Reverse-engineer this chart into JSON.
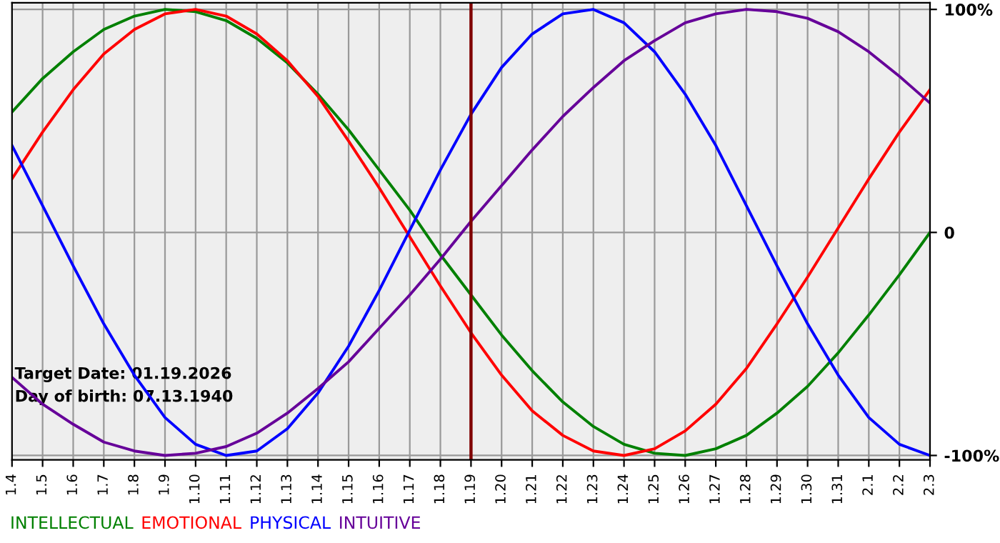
{
  "chart_data": {
    "type": "line",
    "categories": [
      "1.4",
      "1.5",
      "1.6",
      "1.7",
      "1.8",
      "1.9",
      "1.10",
      "1.11",
      "1.12",
      "1.13",
      "1.14",
      "1.15",
      "1.16",
      "1.17",
      "1.18",
      "1.19",
      "1.20",
      "1.21",
      "1.22",
      "1.23",
      "1.24",
      "1.25",
      "1.26",
      "1.27",
      "1.28",
      "1.29",
      "1.30",
      "1.31",
      "2.1",
      "2.2",
      "2.3"
    ],
    "series": [
      {
        "name": "INTELLECTUAL",
        "color": "#008000",
        "values": [
          54,
          69,
          81,
          91,
          97,
          100,
          99,
          95,
          87,
          76,
          62,
          46,
          28,
          10,
          -10,
          -28,
          -46,
          -62,
          -76,
          -87,
          -95,
          -99,
          -100,
          -97,
          -91,
          -81,
          -69,
          -54,
          -37,
          -19,
          0
        ]
      },
      {
        "name": "EMOTIONAL",
        "color": "#ff0000",
        "values": [
          24,
          45,
          64,
          80,
          91,
          98,
          100,
          97,
          89,
          77,
          61,
          41,
          20,
          -2,
          -24,
          -45,
          -64,
          -80,
          -91,
          -98,
          -100,
          -97,
          -89,
          -77,
          -61,
          -41,
          -20,
          2,
          24,
          45,
          64
        ]
      },
      {
        "name": "PHYSICAL",
        "color": "#0000ff",
        "values": [
          39,
          12,
          -15,
          -41,
          -64,
          -83,
          -95,
          -100,
          -98,
          -88,
          -72,
          -51,
          -26,
          1,
          28,
          53,
          74,
          89,
          98,
          100,
          94,
          81,
          62,
          39,
          12,
          -15,
          -41,
          -64,
          -83,
          -95,
          -100
        ]
      },
      {
        "name": "INTUITIVE",
        "color": "#660099",
        "values": [
          -65,
          -77,
          -86,
          -94,
          -98,
          -100,
          -99,
          -96,
          -90,
          -81,
          -70,
          -58,
          -43,
          -28,
          -12,
          5,
          21,
          37,
          52,
          65,
          77,
          86,
          94,
          98,
          100,
          99,
          96,
          90,
          81,
          70,
          58
        ]
      }
    ],
    "ylim": [
      -102,
      103
    ],
    "yticks": [
      {
        "value": 100,
        "label": "100%"
      },
      0,
      {
        "value": -100,
        "label": "-100%"
      }
    ],
    "grid": true,
    "legend": "bottom left",
    "ref_lines": [
      {
        "axis": "x",
        "value": "1.19",
        "color": "#800000"
      }
    ],
    "annotations": [
      "Target Date: 01.19.2026",
      "Day of birth: 07.13.1940"
    ]
  }
}
